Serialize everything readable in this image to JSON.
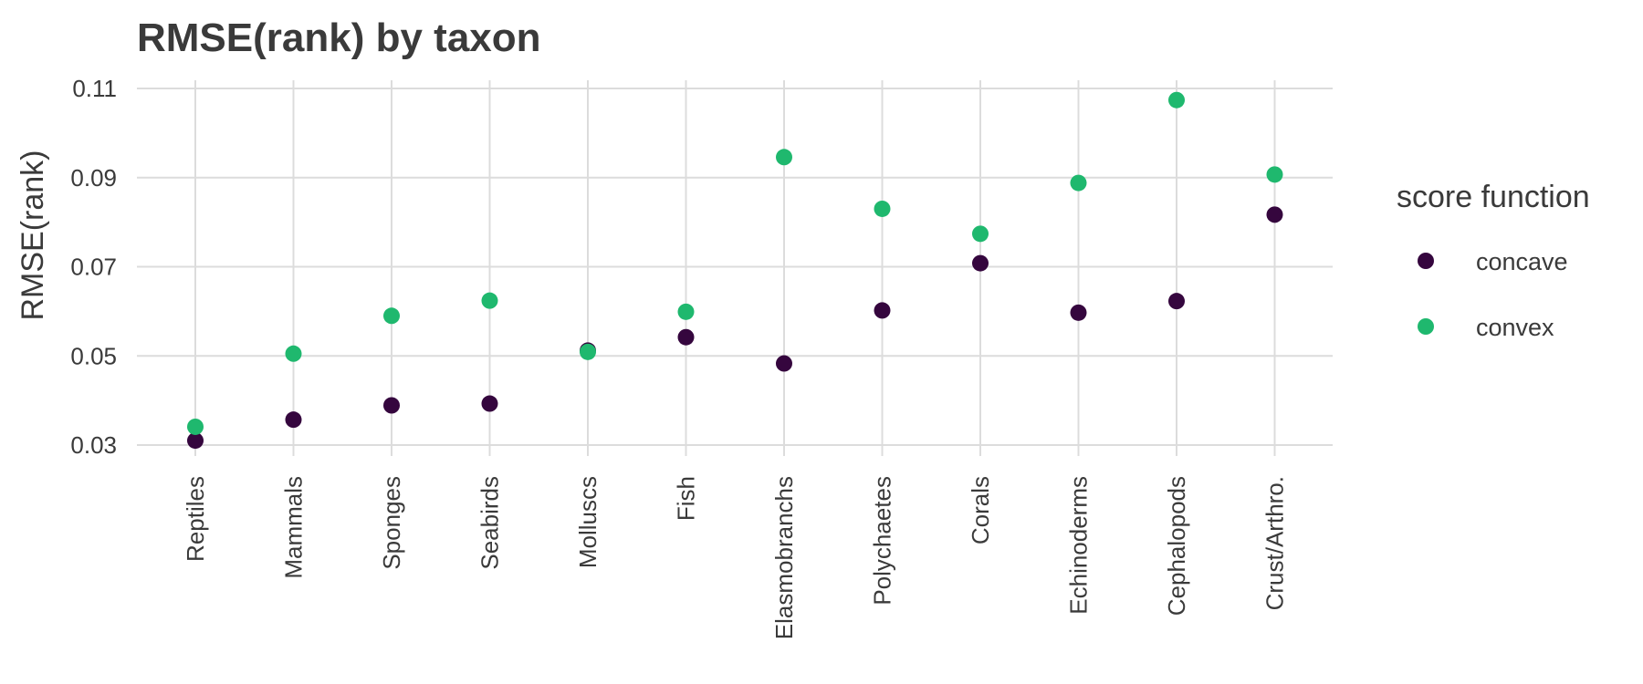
{
  "chart_data": {
    "type": "scatter",
    "title": "RMSE(rank) by taxon",
    "xlabel": "",
    "ylabel": "RMSE(rank)",
    "categories": [
      "Reptiles",
      "Mammals",
      "Sponges",
      "Seabirds",
      "Molluscs",
      "Fish",
      "Elasmobranchs",
      "Polychaetes",
      "Corals",
      "Echinoderms",
      "Cephalopods",
      "Crust/Arthro."
    ],
    "yticks": [
      "0.03",
      "0.05",
      "0.07",
      "0.09",
      "0.11"
    ],
    "ylim": [
      0.0275,
      0.1115
    ],
    "grid": true,
    "legend": {
      "title": "score function",
      "position": "right"
    },
    "series": [
      {
        "name": "concave",
        "color": "#35063e",
        "values": [
          0.031,
          0.0357,
          0.0389,
          0.0393,
          0.0512,
          0.0542,
          0.0483,
          0.0602,
          0.0708,
          0.0597,
          0.0623,
          0.0817
        ]
      },
      {
        "name": "convex",
        "color": "#1fb86e",
        "values": [
          0.0341,
          0.0505,
          0.059,
          0.0624,
          0.0509,
          0.0599,
          0.0946,
          0.083,
          0.0774,
          0.0888,
          0.1074,
          0.0907
        ]
      }
    ]
  }
}
